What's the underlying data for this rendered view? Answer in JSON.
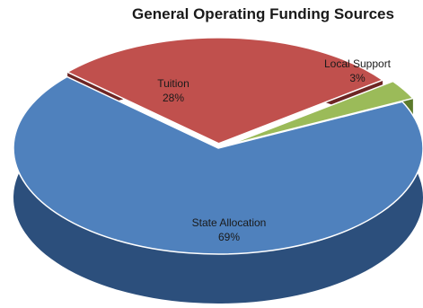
{
  "chart_data": {
    "type": "pie",
    "style": "3d-exploded",
    "title": "General Operating Funding Sources",
    "categories": [
      "State Allocation",
      "Tuition",
      "Local Support"
    ],
    "values": [
      69,
      28,
      3
    ],
    "value_suffix": "%",
    "colors": [
      "#4f81bd",
      "#c0504d",
      "#9bbb59"
    ],
    "side_colors": [
      "#2c4f7c",
      "#6e2624",
      "#5c7a2b"
    ],
    "legend": "none"
  }
}
